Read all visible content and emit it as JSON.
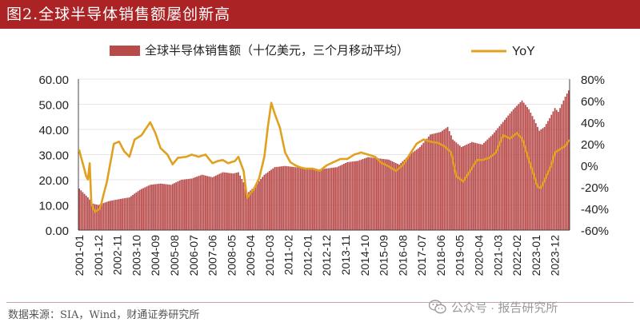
{
  "title": "图2.全球半导体销售额屡创新高",
  "source": "数据来源：SIA，Wind，财通证券研究所",
  "watermark": "公众号 · 报告研究所",
  "colors": {
    "bar": "#b84a4a",
    "line": "#e0a020",
    "title_bg": "#ab2325"
  },
  "chart_data": {
    "type": "bar",
    "title": "",
    "legend": {
      "placement": "top",
      "bar_label": "全球半导体销售额（十亿美元，三个月移动平均）",
      "line_label": "YoY"
    },
    "x_ticks": [
      "2001-01",
      "2001-12",
      "2002-11",
      "2003-10",
      "2004-09",
      "2005-08",
      "2006-07",
      "2007-06",
      "2008-05",
      "2009-04",
      "2010-03",
      "2011-02",
      "2012-01",
      "2012-12",
      "2013-11",
      "2014-10",
      "2015-09",
      "2016-08",
      "2017-07",
      "2018-06",
      "2019-05",
      "2020-04",
      "2021-03",
      "2022-02",
      "2023-01",
      "2023-12"
    ],
    "y_left": {
      "min": 0,
      "max": 60,
      "ticks": [
        "0.00",
        "10.00",
        "20.00",
        "30.00",
        "40.00",
        "50.00",
        "60.00"
      ]
    },
    "y_right": {
      "min": -60,
      "max": 80,
      "ticks": [
        "-60%",
        "-40%",
        "-20%",
        "0%",
        "20%",
        "40%",
        "60%",
        "80%"
      ]
    },
    "sales_anchors": [
      [
        "2001-01",
        16.5
      ],
      [
        "2001-06",
        13.0
      ],
      [
        "2001-09",
        10.5
      ],
      [
        "2001-12",
        10.0
      ],
      [
        "2002-06",
        11.5
      ],
      [
        "2002-12",
        12.3
      ],
      [
        "2003-06",
        13.0
      ],
      [
        "2003-12",
        16.0
      ],
      [
        "2004-06",
        18.0
      ],
      [
        "2004-12",
        18.5
      ],
      [
        "2005-06",
        18.0
      ],
      [
        "2005-12",
        20.0
      ],
      [
        "2006-06",
        20.5
      ],
      [
        "2006-12",
        22.0
      ],
      [
        "2007-06",
        21.0
      ],
      [
        "2007-12",
        23.0
      ],
      [
        "2008-06",
        22.5
      ],
      [
        "2008-09",
        23.0
      ],
      [
        "2008-12",
        19.0
      ],
      [
        "2009-02",
        14.5
      ],
      [
        "2009-06",
        17.0
      ],
      [
        "2009-12",
        22.0
      ],
      [
        "2010-06",
        25.0
      ],
      [
        "2010-12",
        25.5
      ],
      [
        "2011-06",
        25.0
      ],
      [
        "2011-12",
        24.5
      ],
      [
        "2012-06",
        24.0
      ],
      [
        "2012-12",
        24.5
      ],
      [
        "2013-06",
        25.0
      ],
      [
        "2013-12",
        27.0
      ],
      [
        "2014-06",
        27.5
      ],
      [
        "2014-12",
        29.0
      ],
      [
        "2015-06",
        28.5
      ],
      [
        "2015-12",
        28.0
      ],
      [
        "2016-06",
        26.0
      ],
      [
        "2016-12",
        30.0
      ],
      [
        "2017-06",
        33.0
      ],
      [
        "2017-12",
        38.0
      ],
      [
        "2018-06",
        39.0
      ],
      [
        "2018-10",
        41.0
      ],
      [
        "2019-01",
        36.0
      ],
      [
        "2019-06",
        33.0
      ],
      [
        "2019-12",
        35.0
      ],
      [
        "2020-06",
        34.0
      ],
      [
        "2020-12",
        38.0
      ],
      [
        "2021-06",
        43.0
      ],
      [
        "2021-12",
        48.0
      ],
      [
        "2022-05",
        51.5
      ],
      [
        "2022-09",
        48.0
      ],
      [
        "2022-12",
        44.0
      ],
      [
        "2023-03",
        39.5
      ],
      [
        "2023-06",
        41.0
      ],
      [
        "2023-09",
        44.5
      ],
      [
        "2023-12",
        48.5
      ],
      [
        "2024-02",
        47.0
      ],
      [
        "2024-04",
        50.0
      ],
      [
        "2024-06",
        53.0
      ],
      [
        "2024-08",
        55.5
      ]
    ],
    "yoy_anchors": [
      [
        "2001-01",
        14
      ],
      [
        "2001-05",
        -10
      ],
      [
        "2001-06",
        -13
      ],
      [
        "2001-07",
        2
      ],
      [
        "2001-08",
        -35
      ],
      [
        "2001-10",
        -43
      ],
      [
        "2002-01",
        -40
      ],
      [
        "2002-05",
        -15
      ],
      [
        "2002-09",
        20
      ],
      [
        "2002-12",
        22
      ],
      [
        "2003-03",
        13
      ],
      [
        "2003-06",
        8
      ],
      [
        "2003-09",
        24
      ],
      [
        "2004-01",
        28
      ],
      [
        "2004-06",
        40
      ],
      [
        "2004-09",
        30
      ],
      [
        "2004-12",
        16
      ],
      [
        "2005-04",
        10
      ],
      [
        "2005-07",
        1
      ],
      [
        "2005-10",
        7
      ],
      [
        "2006-03",
        8
      ],
      [
        "2006-06",
        10
      ],
      [
        "2006-10",
        8
      ],
      [
        "2007-02",
        10
      ],
      [
        "2007-06",
        2
      ],
      [
        "2007-09",
        4
      ],
      [
        "2007-12",
        5
      ],
      [
        "2008-03",
        2
      ],
      [
        "2008-07",
        4
      ],
      [
        "2008-09",
        8
      ],
      [
        "2008-12",
        -5
      ],
      [
        "2009-02",
        -30
      ],
      [
        "2009-06",
        -22
      ],
      [
        "2009-09",
        -12
      ],
      [
        "2009-12",
        8
      ],
      [
        "2010-02",
        35
      ],
      [
        "2010-04",
        58
      ],
      [
        "2010-06",
        48
      ],
      [
        "2010-09",
        35
      ],
      [
        "2010-12",
        12
      ],
      [
        "2011-03",
        3
      ],
      [
        "2011-06",
        0
      ],
      [
        "2011-09",
        -2
      ],
      [
        "2011-12",
        -3
      ],
      [
        "2012-04",
        -3
      ],
      [
        "2012-08",
        -5
      ],
      [
        "2012-12",
        0
      ],
      [
        "2013-04",
        3
      ],
      [
        "2013-08",
        6
      ],
      [
        "2013-12",
        6
      ],
      [
        "2014-04",
        10
      ],
      [
        "2014-08",
        12
      ],
      [
        "2014-12",
        10
      ],
      [
        "2015-04",
        8
      ],
      [
        "2015-08",
        2
      ],
      [
        "2015-12",
        -1
      ],
      [
        "2016-04",
        -5
      ],
      [
        "2016-08",
        0
      ],
      [
        "2016-12",
        10
      ],
      [
        "2017-04",
        20
      ],
      [
        "2017-08",
        24
      ],
      [
        "2017-12",
        22
      ],
      [
        "2018-04",
        21
      ],
      [
        "2018-08",
        18
      ],
      [
        "2018-12",
        12
      ],
      [
        "2019-03",
        -10
      ],
      [
        "2019-07",
        -15
      ],
      [
        "2019-11",
        -5
      ],
      [
        "2020-03",
        5
      ],
      [
        "2020-06",
        5
      ],
      [
        "2020-10",
        7
      ],
      [
        "2021-02",
        12
      ],
      [
        "2021-06",
        28
      ],
      [
        "2021-10",
        25
      ],
      [
        "2022-02",
        30
      ],
      [
        "2022-05",
        25
      ],
      [
        "2022-09",
        5
      ],
      [
        "2022-12",
        -10
      ],
      [
        "2023-02",
        -20
      ],
      [
        "2023-04",
        -21
      ],
      [
        "2023-07",
        -10
      ],
      [
        "2023-10",
        0
      ],
      [
        "2023-12",
        12
      ],
      [
        "2024-03",
        15
      ],
      [
        "2024-06",
        18
      ],
      [
        "2024-08",
        23
      ]
    ]
  }
}
